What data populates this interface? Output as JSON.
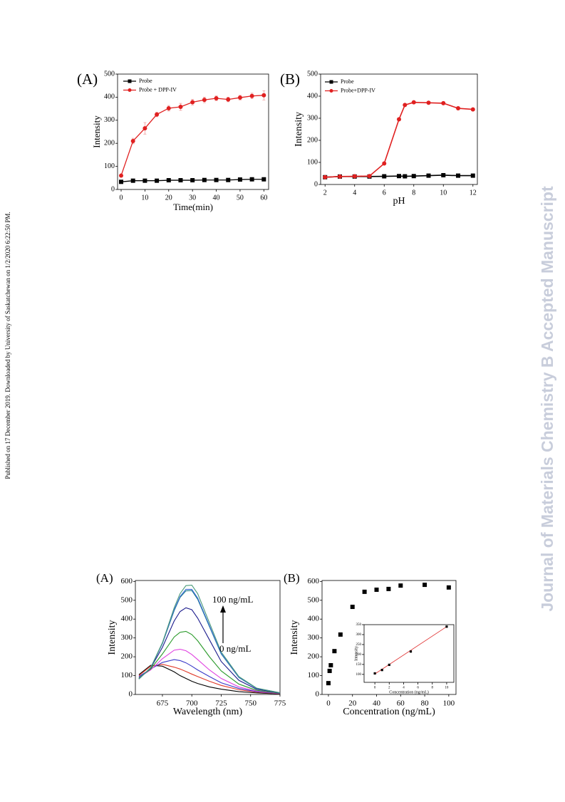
{
  "side_note": "Published on 17 December 2019. Downloaded by University of Saskatchewan on 1/2/2020 6:22:50 PM.",
  "watermark": "Journal of Materials Chemistry B Accepted Manuscript",
  "chart_data": [
    {
      "type": "line",
      "panel_label": "(A)",
      "xlabel": "Time(min)",
      "ylabel": "Intensity",
      "x": [
        0,
        5,
        10,
        15,
        20,
        25,
        30,
        35,
        40,
        45,
        50,
        55,
        60
      ],
      "series": [
        {
          "name": "Probe",
          "color": "#000000",
          "marker": "square",
          "values": [
            33,
            38,
            38,
            38,
            40,
            40,
            40,
            41,
            41,
            41,
            43,
            44,
            44
          ]
        },
        {
          "name": "Probe + DPP-IV",
          "color": "#e02020",
          "marker": "circle",
          "values": [
            60,
            210,
            265,
            325,
            352,
            358,
            378,
            388,
            395,
            390,
            398,
            405,
            408
          ],
          "errors": [
            5,
            12,
            25,
            10,
            12,
            15,
            12,
            12,
            10,
            10,
            10,
            12,
            20
          ]
        }
      ],
      "xlim": [
        -1.5,
        62
      ],
      "ylim": [
        0,
        500
      ],
      "xticks": [
        0,
        10,
        20,
        30,
        40,
        50,
        60
      ],
      "yticks": [
        0,
        100,
        200,
        300,
        400,
        500
      ],
      "legend": "upper left"
    },
    {
      "type": "line",
      "panel_label": "(B)",
      "xlabel": "pH",
      "ylabel": "Intensity",
      "x": [
        2,
        3,
        4,
        5,
        6,
        7,
        7.4,
        8,
        9,
        10,
        11,
        12
      ],
      "series": [
        {
          "name": "Probe",
          "color": "#000000",
          "marker": "square",
          "values": [
            33,
            36,
            36,
            36,
            37,
            38,
            37,
            38,
            40,
            42,
            40,
            40
          ]
        },
        {
          "name": "Probe+DPP-IV",
          "color": "#e02020",
          "marker": "circle",
          "values": [
            33,
            36,
            37,
            38,
            95,
            295,
            360,
            372,
            370,
            368,
            345,
            340
          ]
        }
      ],
      "xlim": [
        1.7,
        12.3
      ],
      "ylim": [
        0,
        500
      ],
      "xticks": [
        2,
        4,
        6,
        8,
        10,
        12
      ],
      "yticks": [
        0,
        100,
        200,
        300,
        400,
        500
      ],
      "legend": "upper left"
    },
    {
      "type": "line",
      "panel_label": "(A)",
      "xlabel": "Wavelength (nm)",
      "ylabel": "Intensity",
      "x": [
        655,
        665,
        675,
        685,
        690,
        695,
        700,
        705,
        715,
        725,
        740,
        755,
        775
      ],
      "series": [
        {
          "color": "#000000",
          "values": [
            105,
            155,
            150,
            120,
            100,
            85,
            70,
            58,
            40,
            28,
            15,
            8,
            3
          ]
        },
        {
          "color": "#e03a2a",
          "values": [
            100,
            150,
            160,
            145,
            135,
            122,
            108,
            95,
            70,
            48,
            25,
            12,
            4
          ]
        },
        {
          "color": "#3a3ac8",
          "values": [
            95,
            135,
            170,
            185,
            180,
            168,
            150,
            130,
            95,
            62,
            32,
            15,
            5
          ]
        },
        {
          "color": "#e040e0",
          "values": [
            90,
            130,
            190,
            235,
            240,
            232,
            212,
            185,
            130,
            85,
            40,
            18,
            6
          ]
        },
        {
          "color": "#2a9a2a",
          "values": [
            88,
            135,
            215,
            305,
            330,
            335,
            318,
            285,
            200,
            125,
            55,
            22,
            7
          ]
        },
        {
          "color": "#1a1a8c",
          "values": [
            85,
            140,
            250,
            390,
            440,
            460,
            450,
            405,
            290,
            175,
            75,
            28,
            8
          ]
        },
        {
          "color": "#1a7a8a",
          "values": [
            82,
            140,
            270,
            445,
            515,
            550,
            552,
            505,
            360,
            215,
            90,
            32,
            9
          ]
        },
        {
          "color": "#3a6bd6",
          "values": [
            82,
            142,
            272,
            450,
            520,
            558,
            558,
            512,
            365,
            218,
            92,
            33,
            9
          ]
        },
        {
          "color": "#4a9a7a",
          "values": [
            82,
            142,
            275,
            460,
            535,
            578,
            580,
            535,
            380,
            225,
            95,
            34,
            9
          ]
        }
      ],
      "annotations": [
        "100 ng/mL",
        "0 ng/mL"
      ],
      "xlim": [
        652,
        775
      ],
      "ylim": [
        0,
        605
      ],
      "xticks": [
        675,
        700,
        725,
        750,
        775
      ],
      "yticks": [
        0,
        100,
        200,
        300,
        400,
        500,
        600
      ]
    },
    {
      "type": "scatter",
      "panel_label": "(B)",
      "xlabel": "Concentration (ng/mL)",
      "ylabel": "Intensity",
      "x": [
        0,
        1,
        2,
        5,
        10,
        20,
        30,
        40,
        50,
        60,
        80,
        100
      ],
      "values": [
        60,
        125,
        155,
        230,
        318,
        465,
        545,
        556,
        560,
        578,
        582,
        568
      ],
      "color": "#000000",
      "xlim": [
        -5.3,
        106
      ],
      "ylim": [
        0,
        605
      ],
      "xticks": [
        0,
        20,
        40,
        60,
        80,
        100
      ],
      "yticks": [
        0,
        100,
        200,
        300,
        400,
        500,
        600
      ],
      "inset": {
        "type": "scatter",
        "xlabel": "Concentration (ng/mL)",
        "ylabel": "Intensity",
        "x": [
          0,
          1,
          2,
          5,
          10
        ],
        "values": [
          105,
          122,
          148,
          215,
          340
        ],
        "color": "#000000",
        "fit": {
          "color": "#e03030",
          "x": [
            0,
            10
          ],
          "values": [
            102,
            340
          ]
        },
        "xlim": [
          -1.5,
          11
        ],
        "ylim": [
          60,
          350
        ],
        "xticks": [
          0,
          2,
          4,
          6,
          8,
          10
        ],
        "yticks": [
          100,
          150,
          200,
          250,
          300,
          350
        ]
      }
    }
  ]
}
